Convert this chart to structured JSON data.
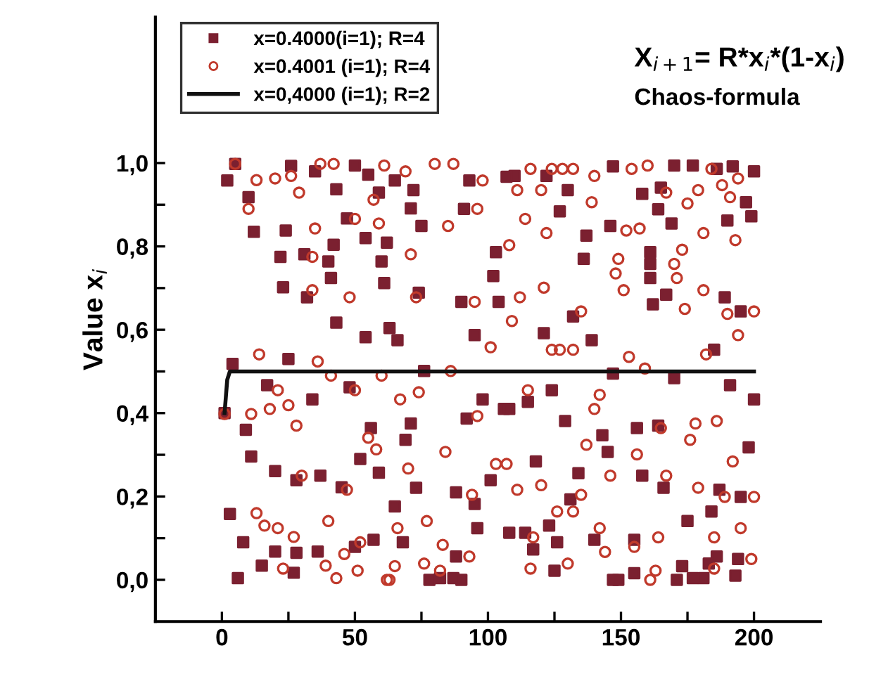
{
  "chart_data": {
    "type": "scatter",
    "ylabel": "Value x$_{i}$",
    "annotations": [
      "X$_{i+1}$= R*x$_{i}$*(1-x$_{i}$)",
      "Chaos-formula"
    ],
    "xlim": [
      -25,
      225
    ],
    "ylim": [
      -0.1,
      1.35
    ],
    "xticks": [
      0,
      {
        "value": 25,
        "label": null
      },
      50,
      {
        "value": 75,
        "label": null
      },
      100,
      {
        "value": 125,
        "label": null
      },
      150,
      {
        "value": 175,
        "label": null
      },
      200
    ],
    "yticks": [
      {
        "value": 0,
        "label": "0,0"
      },
      {
        "value": 0.1,
        "label": null
      },
      {
        "value": 0.2,
        "label": "0,2"
      },
      {
        "value": 0.3,
        "label": null
      },
      {
        "value": 0.4,
        "label": "0,4"
      },
      {
        "value": 0.5,
        "label": null
      },
      {
        "value": 0.6,
        "label": "0,6"
      },
      {
        "value": 0.7,
        "label": null
      },
      {
        "value": 0.8,
        "label": "0,8"
      },
      {
        "value": 0.9,
        "label": null
      },
      {
        "value": 1.0,
        "label": "1,0"
      }
    ],
    "legend": "top left",
    "grid": false,
    "series": [
      {
        "name": "x=0.4000(i=1); R=4",
        "marker": "square",
        "color": "#7b2030",
        "x": [
          1,
          2,
          3,
          4,
          5,
          6,
          8,
          9,
          10,
          11,
          12,
          15,
          17,
          20,
          20,
          22,
          23,
          24,
          25,
          26,
          27,
          28,
          28,
          31,
          32,
          34,
          35,
          36,
          37,
          40,
          41,
          42,
          43,
          43,
          45,
          47,
          48,
          50,
          50,
          52,
          54,
          54,
          55,
          56,
          57,
          59,
          60,
          61,
          62,
          63,
          59,
          65,
          72,
          71,
          75,
          66,
          74,
          76,
          71,
          69,
          73,
          65,
          68,
          88,
          78,
          82,
          87,
          90,
          92,
          91,
          93,
          95,
          90,
          88,
          95,
          96,
          98,
          101,
          102,
          103,
          104,
          106,
          108,
          110,
          107,
          115,
          108,
          114,
          117,
          118,
          121,
          122,
          124,
          123,
          126,
          125,
          127,
          129,
          130,
          132,
          131,
          134,
          136,
          137,
          139,
          140,
          143,
          145,
          147,
          147,
          146,
          147,
          149,
          155,
          158,
          161,
          161,
          161,
          162,
          164,
          165,
          167,
          169,
          170,
          177,
          156,
          158,
          155,
          164,
          166,
          170,
          171,
          173,
          175,
          177,
          181,
          183,
          184,
          185,
          186,
          187,
          186,
          190,
          189,
          191,
          192,
          193,
          194,
          195,
          195,
          197,
          198,
          200,
          199,
          200
        ],
        "values": [
          0.4,
          0.958,
          0.158,
          0.518,
          0.998,
          0.004,
          0.09,
          0.36,
          0.918,
          0.296,
          0.835,
          0.034,
          0.467,
          0.261,
          0.068,
          0.775,
          0.702,
          0.838,
          0.53,
          0.993,
          0.017,
          0.065,
          0.239,
          0.781,
          0.678,
          0.433,
          0.98,
          0.068,
          0.25,
          0.764,
          0.724,
          0.804,
          0.937,
          0.617,
          0.222,
          0.867,
          0.462,
          0.994,
          0.079,
          0.29,
          0.582,
          0.82,
          0.972,
          0.364,
          0.096,
          0.257,
          0.764,
          0.712,
          0.809,
          0.604,
          0.929,
          0.958,
          0.935,
          0.891,
          0.849,
          0.575,
          0.689,
          0.501,
          0.375,
          0.336,
          0.221,
          0.176,
          0.09,
          0.056,
          0.0,
          0.004,
          0.004,
          0.0,
          0.387,
          0.89,
          0.958,
          0.587,
          0.667,
          0.21,
          0.182,
          0.124,
          0.433,
          0.239,
          0.729,
          0.786,
          0.667,
          0.41,
          0.41,
          0.969,
          0.967,
          0.427,
          0.113,
          0.113,
          0.073,
          0.284,
          0.592,
          0.969,
          0.455,
          0.13,
          0.09,
          0.022,
          0.884,
          0.381,
          0.935,
          0.632,
          0.193,
          0.256,
          0.77,
          0.826,
          0.575,
          0.096,
          0.347,
          0.307,
          0.0,
          0.992,
          0.849,
          0.495,
          0.0,
          0.016,
          0.926,
          0.758,
          0.786,
          0.724,
          0.661,
          0.889,
          0.941,
          0.684,
          0.855,
          0.994,
          0.994,
          0.364,
          0.25,
          0.096,
          0.37,
          0.221,
          0.484,
          0.0,
          0.033,
          0.141,
          0.004,
          0.004,
          0.039,
          0.164,
          0.552,
          0.986,
          0.216,
          0.056,
          0.862,
          0.678,
          0.467,
          0.992,
          0.01,
          0.05,
          0.199,
          0.644,
          0.906,
          0.318,
          0.433,
          0.872,
          0.98
        ]
      },
      {
        "name": "x=0.4001 (i=1); R=4",
        "marker": "circle",
        "color": "#c0392b",
        "x": [
          1,
          5,
          10,
          14,
          11,
          13,
          13,
          16,
          18,
          20,
          21,
          21,
          23,
          25,
          26,
          27,
          28,
          29,
          30,
          34,
          34,
          35,
          36,
          37,
          39,
          40,
          41,
          42,
          43,
          46,
          47,
          48,
          50,
          50,
          51,
          52,
          55,
          57,
          58,
          59,
          60,
          61,
          62,
          69,
          80,
          87,
          71,
          73,
          85,
          96,
          98,
          101,
          95,
          67,
          74,
          86,
          70,
          84,
          77,
          66,
          65,
          63,
          76,
          82,
          83,
          93,
          94,
          96,
          103,
          107,
          108,
          109,
          111,
          112,
          111,
          114,
          115,
          116,
          117,
          116,
          120,
          120,
          121,
          122,
          124,
          124,
          127,
          126,
          128,
          130,
          132,
          132,
          132,
          135,
          135,
          137,
          139,
          140,
          140,
          142,
          144,
          146,
          142,
          154,
          160,
          152,
          157,
          149,
          148,
          151,
          167,
          173,
          170,
          171,
          174,
          175,
          179,
          181,
          181,
          184,
          188,
          191,
          193,
          194,
          190,
          194,
          200,
          153,
          159,
          182,
          165,
          176,
          178,
          186,
          156,
          167,
          179,
          189,
          200,
          192,
          164,
          155,
          185,
          195,
          199,
          163,
          161,
          185
        ],
        "values": [
          0.398,
          0.998,
          0.89,
          0.541,
          0.398,
          0.16,
          0.959,
          0.13,
          0.41,
          0.963,
          0.455,
          0.124,
          0.027,
          0.419,
          0.969,
          0.103,
          0.37,
          0.929,
          0.25,
          0.775,
          0.695,
          0.843,
          0.524,
          0.998,
          0.034,
          0.141,
          0.49,
          0.998,
          0.004,
          0.062,
          0.216,
          0.678,
          0.866,
          0.455,
          0.022,
          0.09,
          0.341,
          0.912,
          0.313,
          0.855,
          0.49,
          0.994,
          0.0,
          0.98,
          0.998,
          0.998,
          0.781,
          0.678,
          0.849,
          0.89,
          0.958,
          0.558,
          0.667,
          0.433,
          0.45,
          0.501,
          0.267,
          0.307,
          0.141,
          0.124,
          0.033,
          0.0,
          0.039,
          0.022,
          0.084,
          0.056,
          0.204,
          0.393,
          0.278,
          0.278,
          0.803,
          0.621,
          0.935,
          0.678,
          0.216,
          0.866,
          0.455,
          0.986,
          0.102,
          0.027,
          0.935,
          0.227,
          0.701,
          0.832,
          0.552,
          0.986,
          0.552,
          0.164,
          0.986,
          0.039,
          0.552,
          0.164,
          0.986,
          0.644,
          0.204,
          0.324,
          0.906,
          0.969,
          0.41,
          0.124,
          0.067,
          0.25,
          0.444,
          0.986,
          0.994,
          0.838,
          0.843,
          0.77,
          0.735,
          0.695,
          0.929,
          0.792,
          0.758,
          0.724,
          0.65,
          0.903,
          0.935,
          0.832,
          0.695,
          0.986,
          0.947,
          0.918,
          0.815,
          0.963,
          0.638,
          0.587,
          0.644,
          0.535,
          0.507,
          0.541,
          0.364,
          0.336,
          0.375,
          0.381,
          0.301,
          0.25,
          0.221,
          0.199,
          0.199,
          0.284,
          0.102,
          0.079,
          0.102,
          0.124,
          0.05,
          0.022,
          0.0,
          0.027
        ]
      },
      {
        "name": "x=0,4000 (i=1); R=2",
        "type": "line",
        "marker": "none",
        "line_style": "solid",
        "color": "#111111",
        "x": [
          1,
          2,
          3,
          200
        ],
        "values": [
          0.4,
          0.48,
          0.5,
          0.5
        ]
      }
    ]
  }
}
